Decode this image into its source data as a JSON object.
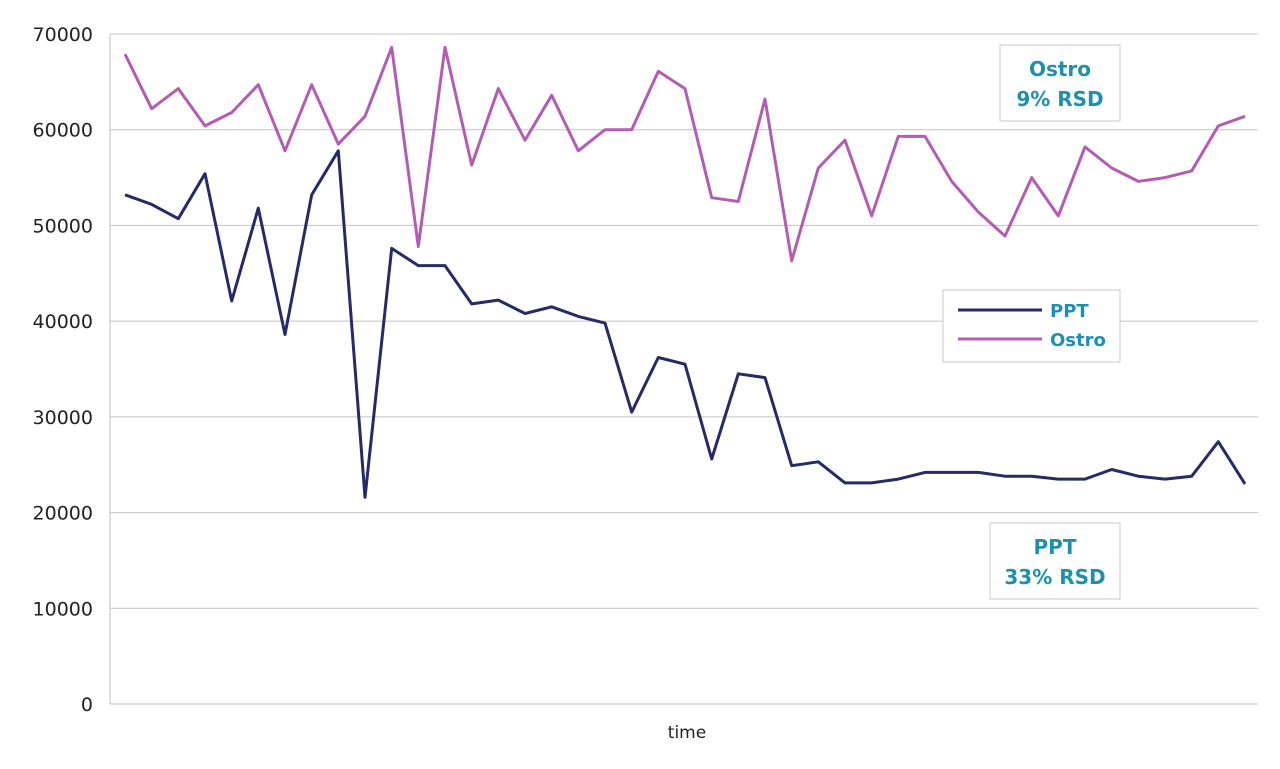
{
  "chart_data": {
    "type": "line",
    "title": "",
    "xlabel": "time",
    "ylabel": "",
    "ylim": [
      0,
      70000
    ],
    "yticks": [
      0,
      10000,
      20000,
      30000,
      40000,
      50000,
      60000,
      70000
    ],
    "grid": true,
    "legend_position": "right",
    "series": [
      {
        "name": "PPT",
        "color": "#262a66",
        "values": [
          53200,
          52200,
          50700,
          55400,
          42100,
          51800,
          38600,
          53200,
          57800,
          21600,
          47600,
          45800,
          45800,
          41800,
          42200,
          40800,
          41500,
          40500,
          39800,
          30500,
          36200,
          35500,
          25600,
          34500,
          34100,
          24900,
          25300,
          23100,
          23100,
          23500,
          24200,
          24200,
          24200,
          23800,
          23800,
          23500,
          23500,
          24500,
          23800,
          23500,
          23800,
          27400,
          23000
        ]
      },
      {
        "name": "Ostro",
        "color": "#b35cb3",
        "values": [
          67900,
          62200,
          64300,
          60400,
          61800,
          64700,
          57800,
          64700,
          58500,
          61400,
          68600,
          47800,
          68600,
          56300,
          64300,
          58900,
          63600,
          57800,
          60000,
          60000,
          66100,
          64300,
          52900,
          52500,
          63200,
          46300,
          56000,
          58900,
          51000,
          59300,
          59300,
          54600,
          51400,
          48900,
          55000,
          51000,
          58200,
          56000,
          54600,
          55000,
          55700,
          60400,
          61400
        ]
      }
    ],
    "annotations": [
      {
        "lines": [
          "Ostro",
          "9% RSD"
        ]
      },
      {
        "lines": [
          "PPT",
          "33% RSD"
        ]
      }
    ]
  }
}
